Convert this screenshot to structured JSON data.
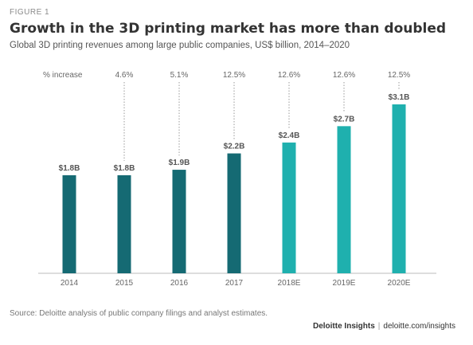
{
  "figure_label": "FIGURE 1",
  "title": "Growth in the 3D printing market has more than doubled",
  "subtitle": "Global 3D printing revenues among large public companies, US$ billion, 2014–2020",
  "source": "Source: Deloitte analysis of public company filings and analyst estimates.",
  "credit": {
    "brand": "Deloitte Insights",
    "separator": "|",
    "url": "deloitte.com/insights"
  },
  "colors": {
    "actual": "#156a73",
    "estimate": "#1fb0ae",
    "axis": "#bbbbbb",
    "text": "#555555"
  },
  "chart_data": {
    "type": "bar",
    "categories": [
      "2014",
      "2015",
      "2016",
      "2017",
      "2018E",
      "2019E",
      "2020E"
    ],
    "values": [
      1.8,
      1.8,
      1.9,
      2.2,
      2.4,
      2.7,
      3.1
    ],
    "value_labels": [
      "$1.8B",
      "$1.8B",
      "$1.9B",
      "$2.2B",
      "$2.4B",
      "$2.7B",
      "$3.1B"
    ],
    "estimate": [
      false,
      false,
      false,
      false,
      true,
      true,
      true
    ],
    "increase_header": "% increase",
    "increase_labels": [
      "",
      "4.6%",
      "5.1%",
      "12.5%",
      "12.6%",
      "12.6%",
      "12.5%"
    ],
    "ylim": [
      0,
      3.1
    ],
    "grid": false,
    "legend": "none"
  }
}
